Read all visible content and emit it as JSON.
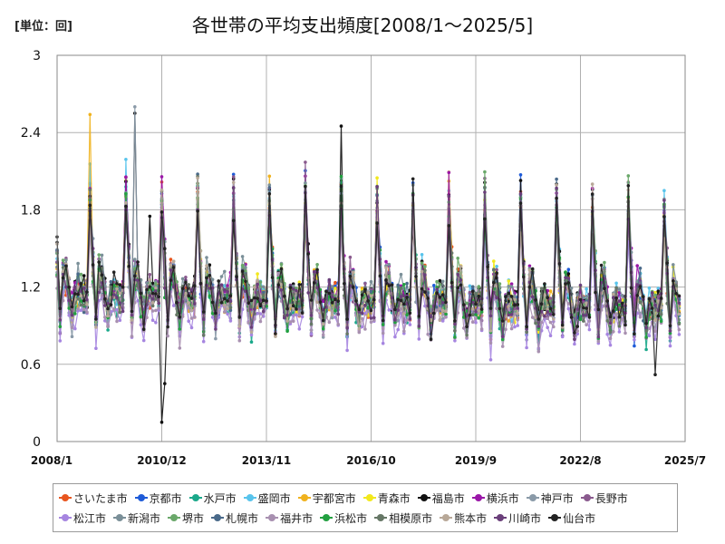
{
  "unit_label": "[単位：回]",
  "chart_data": {
    "type": "line",
    "title": "各世帯の平均支出頻度[2008/1～2025/5]",
    "xlabel": "",
    "ylabel": "",
    "x_range": [
      "2008-01",
      "2025-07"
    ],
    "ylim": [
      0,
      3
    ],
    "yticks": [
      0,
      0.6,
      1.2,
      1.8,
      2.4,
      3
    ],
    "ytick_labels": [
      "0",
      "0.6",
      "1.2",
      "1.8",
      "2.4",
      "3"
    ],
    "xticks": [
      "2008-01",
      "2010-12",
      "2013-11",
      "2016-10",
      "2019-09",
      "2022-08",
      "2025-07"
    ],
    "xtick_labels": [
      "2008/1",
      "2010/12",
      "2013/11",
      "2016/10",
      "2019/9",
      "2022/8",
      "2025/7"
    ],
    "grid": true,
    "legend_position": "bottom",
    "approximate_profile": {
      "description_note": "",
      "period_start": "2008-01",
      "period_end": "2025-05",
      "typical_low": 0.8,
      "typical_high": 1.8
    },
    "series": [
      {
        "name": "さいたま市",
        "color": "#e8551e"
      },
      {
        "name": "京都市",
        "color": "#1e5bd8"
      },
      {
        "name": "水戸市",
        "color": "#1aa88a"
      },
      {
        "name": "盛岡市",
        "color": "#58c4ec"
      },
      {
        "name": "宇都宮市",
        "color": "#f0b21e"
      },
      {
        "name": "青森市",
        "color": "#f2e81c"
      },
      {
        "name": "福島市",
        "color": "#111111"
      },
      {
        "name": "横浜市",
        "color": "#9a17a8"
      },
      {
        "name": "神戸市",
        "color": "#8a9aa8"
      },
      {
        "name": "長野市",
        "color": "#8a5a8e"
      },
      {
        "name": "松江市",
        "color": "#a685e0"
      },
      {
        "name": "新潟市",
        "color": "#7a8f98"
      },
      {
        "name": "堺市",
        "color": "#6aa86a"
      },
      {
        "name": "札幌市",
        "color": "#4a6a8a"
      },
      {
        "name": "福井市",
        "color": "#a890b0"
      },
      {
        "name": "浜松市",
        "color": "#22a040"
      },
      {
        "name": "相模原市",
        "color": "#667766"
      },
      {
        "name": "熊本市",
        "color": "#b8a898"
      },
      {
        "name": "川崎市",
        "color": "#6a3f7a"
      },
      {
        "name": "仙台市",
        "color": "#222222"
      }
    ],
    "highlights": [
      {
        "series": "福島市",
        "x": "2010-12",
        "y": 0.15
      },
      {
        "series": "福島市",
        "x": "2011-01",
        "y": 0.45
      },
      {
        "series": "福島市",
        "x": "2010-08",
        "y": 1.75
      },
      {
        "series": "宇都宮市",
        "x": "2008-12",
        "y": 2.54
      },
      {
        "series": "神戸市",
        "x": "2010-03",
        "y": 2.6
      },
      {
        "series": "福島市",
        "x": "2010-03",
        "y": 2.55
      },
      {
        "series": "福島市",
        "x": "2015-12",
        "y": 2.45
      },
      {
        "series": "長野市",
        "x": "2014-12",
        "y": 2.17
      },
      {
        "series": "福島市",
        "x": "2021-12",
        "y": 2.0
      },
      {
        "series": "仙台市",
        "x": "2024-09",
        "y": 0.52
      }
    ]
  }
}
